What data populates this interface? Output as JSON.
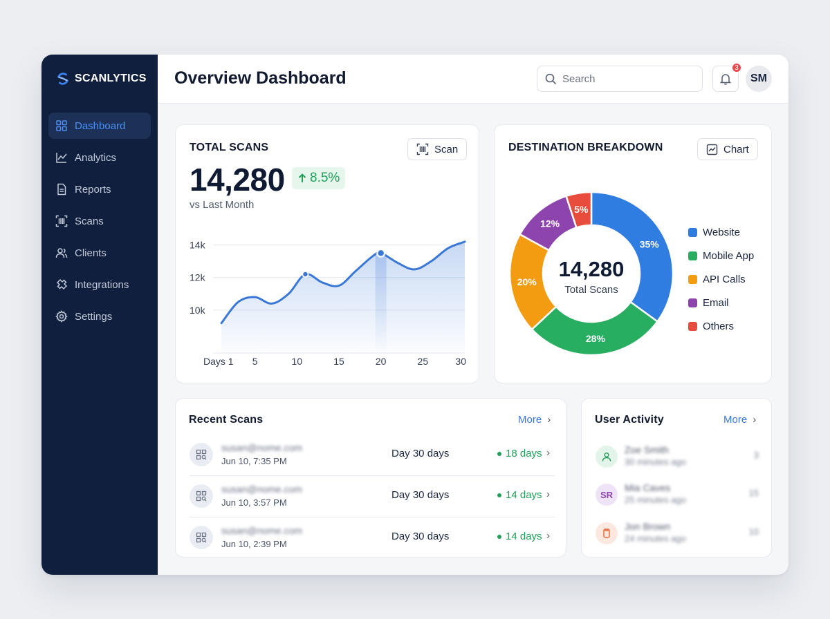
{
  "app": {
    "brand": "SCANLYTICS"
  },
  "sidebar": {
    "items": [
      {
        "label": "Dashboard",
        "icon": "dashboard-icon",
        "active": true
      },
      {
        "label": "Analytics",
        "icon": "analytics-icon",
        "active": false
      },
      {
        "label": "Reports",
        "icon": "reports-icon",
        "active": false
      },
      {
        "label": "Scans",
        "icon": "scans-icon",
        "active": false
      },
      {
        "label": "Clients",
        "icon": "clients-icon",
        "active": false
      },
      {
        "label": "Integrations",
        "icon": "integrations-icon",
        "active": false
      },
      {
        "label": "Settings",
        "icon": "settings-icon",
        "active": false
      }
    ]
  },
  "header": {
    "title": "Overview Dashboard",
    "search_placeholder": "Search",
    "notification_count": "3",
    "user_initials": "SM"
  },
  "total_scans": {
    "title": "TOTAL SCANS",
    "button_label": "Scan",
    "value": "14,280",
    "delta": "8.5%",
    "subtext": "vs Last Month"
  },
  "destination": {
    "title": "DESTINATION BREAKDOWN",
    "button_label": "Chart",
    "center_value": "14,280",
    "center_label": "Total Scans"
  },
  "chart_data": [
    {
      "type": "area",
      "x": [
        1,
        3,
        5,
        7,
        9,
        11,
        13,
        15,
        17,
        19,
        20,
        22,
        24,
        26,
        28,
        30
      ],
      "x_tick_labels": [
        "Days 1",
        "5",
        "10",
        "15",
        "20",
        "25",
        "30"
      ],
      "x_tick_values": [
        1,
        5,
        10,
        15,
        20,
        25,
        30
      ],
      "y": [
        9200,
        10500,
        10800,
        10400,
        11000,
        12200,
        11700,
        11500,
        12400,
        13300,
        13500,
        12900,
        12500,
        13000,
        13800,
        14200
      ],
      "y_tick_labels": [
        "14k",
        "12k",
        "10k"
      ],
      "ylim": [
        8000,
        15000
      ],
      "xlim": [
        0,
        30
      ],
      "highlighted_points": [
        11,
        20
      ],
      "color": "#3a78d8"
    },
    {
      "type": "pie",
      "labels": [
        "Website",
        "Mobile App",
        "API Calls",
        "Email",
        "Others"
      ],
      "values": [
        35,
        28,
        20,
        12,
        5
      ],
      "value_labels": [
        "35%",
        "28%",
        "20%",
        "12%",
        "5%"
      ],
      "colors": [
        "#2f7de1",
        "#27ae60",
        "#f39c12",
        "#8e44ad",
        "#e74c3c"
      ]
    }
  ],
  "recent_scans": {
    "title": "Recent Scans",
    "more_label": "More",
    "rows": [
      {
        "email": "susan@nome.com",
        "time": "Jun 10, 7:35 PM",
        "period": "Day 30 days",
        "status": "18 days"
      },
      {
        "email": "susan@nome.com",
        "time": "Jun 10, 3:57 PM",
        "period": "Day 30 days",
        "status": "14 days"
      },
      {
        "email": "susan@nome.com",
        "time": "Jun 10, 2:39 PM",
        "period": "Day 30 days",
        "status": "14 days"
      }
    ]
  },
  "user_activity": {
    "title": "User Activity",
    "more_label": "More",
    "rows": [
      {
        "name": "Zoe Smith",
        "ago": "30 minutes ago",
        "count": "3",
        "initials": "",
        "avatar_bg": "#e3f5ea",
        "avatar_fg": "#22a05a"
      },
      {
        "name": "Mia Caves",
        "ago": "25 minutes ago",
        "count": "15",
        "initials": "SR",
        "avatar_bg": "#efe4f7",
        "avatar_fg": "#8e44ad"
      },
      {
        "name": "Jon Brown",
        "ago": "24 minutes ago",
        "count": "10",
        "initials": "",
        "avatar_bg": "#fde8df",
        "avatar_fg": "#e2683c"
      }
    ]
  }
}
